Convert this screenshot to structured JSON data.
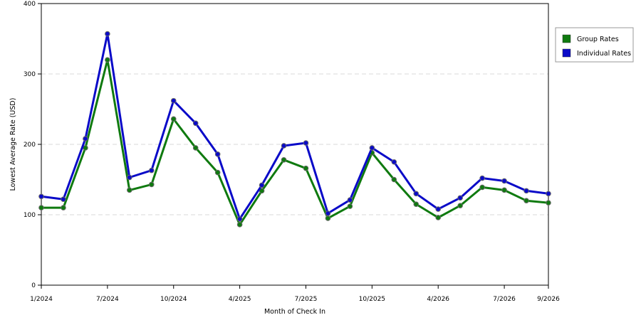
{
  "chart_data": {
    "type": "line",
    "xlabel": "Month of Check In",
    "ylabel": "Lowest Average Rate (USD)",
    "ylim": [
      0,
      400
    ],
    "yticks": [
      0,
      100,
      200,
      300,
      400
    ],
    "x": [
      "1/2024",
      "2/2024",
      "4/2024",
      "7/2024",
      "8/2024",
      "9/2024",
      "10/2024",
      "11/2024",
      "12/2024",
      "4/2025",
      "5/2025",
      "6/2025",
      "7/2025",
      "8/2025",
      "9/2025",
      "10/2025",
      "11/2025",
      "3/2026",
      "4/2026",
      "5/2026",
      "6/2026",
      "7/2026",
      "8/2026",
      "9/2026"
    ],
    "xtick_labels": [
      "1/2024",
      "7/2024",
      "10/2024",
      "4/2025",
      "7/2025",
      "10/2025",
      "4/2026",
      "7/2026",
      "9/2026"
    ],
    "xtick_indices": [
      0,
      3,
      6,
      9,
      12,
      15,
      18,
      21,
      23
    ],
    "grid": true,
    "legend_position": "right",
    "series": [
      {
        "name": "Group Rates",
        "color": "#0f7a0f",
        "values": [
          110,
          110,
          195,
          320,
          135,
          143,
          236,
          195,
          160,
          86,
          134,
          178,
          166,
          95,
          112,
          188,
          150,
          115,
          96,
          113,
          139,
          135,
          120,
          117
        ]
      },
      {
        "name": "Individual Rates",
        "color": "#0a0ac8",
        "values": [
          126,
          122,
          208,
          357,
          153,
          163,
          262,
          230,
          186,
          94,
          142,
          198,
          202,
          102,
          121,
          195,
          175,
          130,
          108,
          124,
          152,
          148,
          134,
          130
        ]
      }
    ]
  }
}
